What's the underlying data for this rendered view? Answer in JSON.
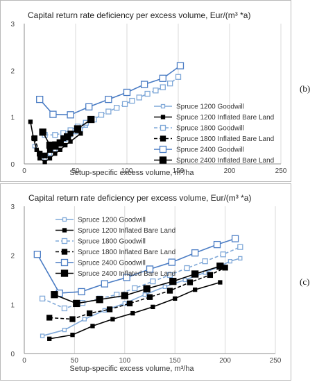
{
  "panels": [
    {
      "label": "(b)",
      "chart_data": {
        "type": "line",
        "title": "Capital return rate deficiency per excess volume,  Eur/(m³ *a)",
        "xlabel": "Setup-specific excess volume, m³/ha",
        "ylabel": "",
        "xlim": [
          0,
          250
        ],
        "ylim": [
          0,
          3
        ],
        "x_ticks": [
          0,
          50,
          100,
          150,
          200,
          250
        ],
        "y_ticks": [
          0,
          1,
          2,
          3
        ],
        "grid": "vertical",
        "legend_position": "right",
        "series": [
          {
            "name": "Spruce 1200 Goodwill",
            "color": "#7fa8d8",
            "dash": false,
            "marker": "square-open",
            "marker_size": "small",
            "x": [
              10,
              15,
              20,
              25,
              30,
              35,
              40,
              45,
              50,
              55,
              60
            ],
            "y": [
              0.38,
              0.2,
              0.12,
              0.22,
              0.3,
              0.42,
              0.52,
              0.62,
              0.68,
              0.74,
              0.82
            ]
          },
          {
            "name": "Spruce 1200 Inflated Bare Land",
            "color": "#000000",
            "dash": false,
            "marker": "square-filled",
            "marker_size": "small",
            "x": [
              6,
              9,
              12,
              15,
              20,
              25,
              30,
              35,
              40,
              45,
              55
            ],
            "y": [
              0.9,
              0.55,
              0.3,
              0.12,
              0.04,
              0.12,
              0.22,
              0.3,
              0.4,
              0.48,
              0.65
            ]
          },
          {
            "name": "Spruce 1800 Goodwill",
            "color": "#7fa8d8",
            "dash": true,
            "marker": "square-open",
            "marker_size": "medium",
            "x": [
              20,
              30,
              38,
              45,
              52,
              60,
              68,
              75,
              82,
              90,
              98,
              105,
              112,
              120,
              128,
              135,
              142,
              150
            ],
            "y": [
              0.62,
              0.62,
              0.66,
              0.72,
              0.8,
              0.88,
              0.95,
              1.05,
              1.12,
              1.2,
              1.28,
              1.35,
              1.42,
              1.5,
              1.57,
              1.64,
              1.72,
              1.86
            ]
          },
          {
            "name": "Spruce 1800 Inflated Bare Land",
            "color": "#000000",
            "dash": true,
            "marker": "square-filled",
            "marker_size": "medium",
            "x": [
              10,
              15,
              20,
              25,
              30,
              38,
              45,
              52
            ],
            "y": [
              0.55,
              0.22,
              0.18,
              0.3,
              0.42,
              0.55,
              0.65,
              0.72
            ]
          },
          {
            "name": "Spruce 2400 Goodwill",
            "color": "#4a7cc4",
            "dash": false,
            "marker": "square-open",
            "marker_size": "large",
            "x": [
              15,
              28,
              45,
              63,
              82,
              100,
              117,
              135,
              152
            ],
            "y": [
              1.38,
              1.06,
              1.05,
              1.22,
              1.38,
              1.53,
              1.7,
              1.83,
              2.1
            ]
          },
          {
            "name": "Spruce 2400 Inflated Bare Land",
            "color": "#000000",
            "dash": false,
            "marker": "square-filled",
            "marker_size": "large",
            "x": [
              18,
              25,
              30,
              35,
              42,
              52,
              65
            ],
            "y": [
              0.68,
              0.4,
              0.38,
              0.45,
              0.58,
              0.75,
              0.95
            ]
          }
        ]
      }
    },
    {
      "label": "(c)",
      "chart_data": {
        "type": "line",
        "title": "Capital return rate deficiency per excess volume,  Eur/(m³ *a)",
        "xlabel": "Setup-specific excess volume, m³/ha",
        "ylabel": "",
        "xlim": [
          0,
          250
        ],
        "ylim": [
          0,
          3
        ],
        "x_ticks": [
          0,
          50,
          100,
          150,
          200,
          250
        ],
        "y_ticks": [
          0,
          1,
          2,
          3
        ],
        "grid": "vertical",
        "legend_position": "top-left",
        "series": [
          {
            "name": "Spruce 1200 Goodwill",
            "color": "#7fa8d8",
            "dash": false,
            "marker": "square-open",
            "marker_size": "small",
            "x": [
              18,
              40,
              60,
              80,
              100,
              120,
              140,
              160,
              180,
              195,
              205,
              215
            ],
            "y": [
              0.36,
              0.48,
              0.7,
              0.88,
              1.02,
              1.2,
              1.36,
              1.5,
              1.65,
              1.78,
              1.88,
              1.94
            ]
          },
          {
            "name": "Spruce 1200 Inflated Bare Land",
            "color": "#000000",
            "dash": false,
            "marker": "square-filled",
            "marker_size": "small",
            "x": [
              25,
              48,
              68,
              88,
              108,
              128,
              150,
              170,
              195
            ],
            "y": [
              0.3,
              0.38,
              0.56,
              0.7,
              0.82,
              0.95,
              1.12,
              1.3,
              1.45
            ]
          },
          {
            "name": "Spruce 1800 Goodwill",
            "color": "#7fa8d8",
            "dash": true,
            "marker": "square-open",
            "marker_size": "medium",
            "x": [
              18,
              40,
              58,
              75,
              92,
              110,
              128,
              145,
              162,
              180,
              198,
              215
            ],
            "y": [
              1.12,
              0.92,
              1.03,
              1.12,
              1.2,
              1.33,
              1.47,
              1.6,
              1.74,
              1.88,
              2.02,
              2.17
            ]
          },
          {
            "name": "Spruce 1800 Inflated Bare Land",
            "color": "#000000",
            "dash": true,
            "marker": "square-filled",
            "marker_size": "medium",
            "x": [
              25,
              48,
              65,
              85,
              105,
              125,
              145,
              165,
              185,
              200
            ],
            "y": [
              0.73,
              0.7,
              0.82,
              0.9,
              1.02,
              1.15,
              1.28,
              1.45,
              1.6,
              1.75
            ]
          },
          {
            "name": "Spruce 2400 Goodwill",
            "color": "#4a7cc4",
            "dash": false,
            "marker": "square-open",
            "marker_size": "large",
            "x": [
              13,
              35,
              57,
              80,
              102,
              125,
              147,
              170,
              192,
              210
            ],
            "y": [
              2.02,
              1.23,
              1.26,
              1.42,
              1.55,
              1.72,
              1.86,
              2.05,
              2.22,
              2.34
            ]
          },
          {
            "name": "Spruce 2400 Inflated Bare Land",
            "color": "#000000",
            "dash": false,
            "marker": "square-filled",
            "marker_size": "large",
            "x": [
              30,
              52,
              75,
              100,
              122,
              148,
              170,
              195
            ],
            "y": [
              1.2,
              1.02,
              1.1,
              1.18,
              1.32,
              1.47,
              1.62,
              1.78
            ]
          }
        ]
      }
    }
  ]
}
